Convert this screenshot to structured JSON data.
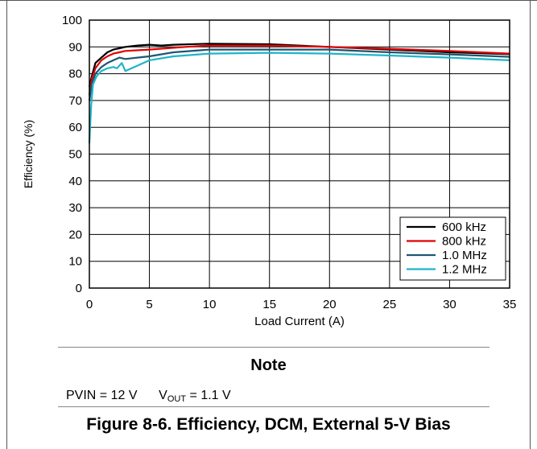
{
  "chart_data": {
    "type": "line",
    "xlabel": "Load Current (A)",
    "ylabel": "Efficiency (%)",
    "xlim": [
      0,
      35
    ],
    "ylim": [
      0,
      100
    ],
    "x_ticks": [
      "0",
      "5",
      "10",
      "15",
      "20",
      "25",
      "30",
      "35"
    ],
    "y_ticks": [
      "0",
      "10",
      "20",
      "30",
      "40",
      "50",
      "60",
      "70",
      "80",
      "90",
      "100"
    ],
    "grid": true,
    "legend_position": "bottom-right",
    "series": [
      {
        "name": "600 kHz",
        "color": "#000000",
        "points": [
          [
            0,
            75
          ],
          [
            0.2,
            79
          ],
          [
            0.5,
            84
          ],
          [
            1,
            86
          ],
          [
            1.5,
            88
          ],
          [
            2,
            89
          ],
          [
            2.5,
            89.5
          ],
          [
            3,
            90
          ],
          [
            4,
            90.5
          ],
          [
            5,
            90.8
          ],
          [
            6,
            90.5
          ],
          [
            7,
            90.8
          ],
          [
            10,
            91.2
          ],
          [
            15,
            91
          ],
          [
            20,
            90
          ],
          [
            25,
            89
          ],
          [
            30,
            88
          ],
          [
            35,
            87.3
          ]
        ]
      },
      {
        "name": "800 kHz",
        "color": "#e00000",
        "points": [
          [
            0,
            72
          ],
          [
            0.2,
            78
          ],
          [
            0.5,
            82
          ],
          [
            1,
            85
          ],
          [
            1.5,
            86.5
          ],
          [
            2,
            87.5
          ],
          [
            2.5,
            88
          ],
          [
            3,
            88.5
          ],
          [
            5,
            89
          ],
          [
            8,
            90
          ],
          [
            10,
            90.5
          ],
          [
            15,
            90.5
          ],
          [
            20,
            90
          ],
          [
            25,
            89.3
          ],
          [
            30,
            88.5
          ],
          [
            35,
            87.5
          ]
        ]
      },
      {
        "name": "1.0 MHz",
        "color": "#1f5670",
        "points": [
          [
            0,
            70
          ],
          [
            0.2,
            76
          ],
          [
            0.5,
            80
          ],
          [
            1,
            82.5
          ],
          [
            1.5,
            84
          ],
          [
            2,
            85
          ],
          [
            2.5,
            86
          ],
          [
            3,
            85.5
          ],
          [
            4,
            86
          ],
          [
            5,
            86.5
          ],
          [
            7,
            88
          ],
          [
            10,
            89
          ],
          [
            15,
            89
          ],
          [
            20,
            89
          ],
          [
            25,
            88
          ],
          [
            30,
            87.2
          ],
          [
            35,
            86.3
          ]
        ]
      },
      {
        "name": "1.2 MHz",
        "color": "#1fb5c8",
        "points": [
          [
            0,
            54
          ],
          [
            0.15,
            68
          ],
          [
            0.3,
            76
          ],
          [
            0.6,
            79
          ],
          [
            1,
            81
          ],
          [
            1.5,
            82
          ],
          [
            2,
            82.5
          ],
          [
            2.3,
            82
          ],
          [
            2.7,
            84
          ],
          [
            3,
            81
          ],
          [
            4,
            83
          ],
          [
            5,
            85
          ],
          [
            7,
            86.5
          ],
          [
            10,
            87.5
          ],
          [
            15,
            87.8
          ],
          [
            20,
            87.5
          ],
          [
            25,
            86.8
          ],
          [
            30,
            86
          ],
          [
            35,
            85
          ]
        ]
      }
    ]
  },
  "note": {
    "title": "Note",
    "pvin": "PVIN = 12 V",
    "vout_label": "V",
    "vout_sub": "OUT",
    "vout_value": " = 1.1 V"
  },
  "caption": "Figure 8-6. Efficiency, DCM, External 5-V Bias"
}
